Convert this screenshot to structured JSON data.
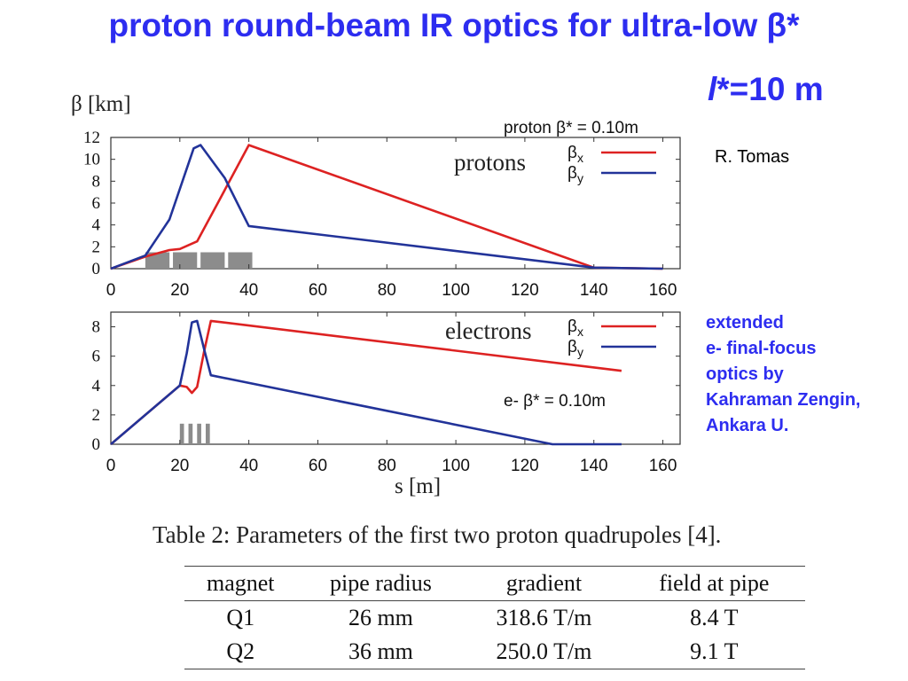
{
  "title": "proton round-beam IR optics for ultra-low β*",
  "lstar": {
    "l": "l",
    "rest": "*=10 m"
  },
  "author": "R. Tomas",
  "note": [
    "extended",
    "e-  final-focus",
    "optics by",
    "Kahraman Zengin,",
    "Ankara U."
  ],
  "chart_data": [
    {
      "type": "line",
      "ylabel": "β [km]",
      "xlabel": "",
      "panel_label": "protons",
      "annotation": "proton β* = 0.10m",
      "xlim": [
        0,
        165
      ],
      "ylim": [
        0,
        12
      ],
      "xticks": [
        0,
        20,
        40,
        60,
        80,
        100,
        120,
        140,
        160
      ],
      "yticks": [
        0,
        2,
        4,
        6,
        8,
        10,
        12
      ],
      "legend_position": "top-right",
      "series": [
        {
          "name": "βx",
          "color": "#dd2222",
          "x": [
            0,
            10,
            17,
            20,
            25,
            31,
            40,
            140,
            160
          ],
          "y": [
            0,
            1.1,
            1.7,
            1.8,
            2.5,
            6.0,
            11.3,
            0.1,
            0.0
          ]
        },
        {
          "name": "βy",
          "color": "#223399",
          "x": [
            0,
            10,
            17,
            24,
            26,
            33,
            40,
            140,
            160
          ],
          "y": [
            0,
            1.2,
            4.5,
            11.0,
            11.3,
            8.3,
            3.9,
            0.1,
            0.0
          ]
        }
      ],
      "magnets": [
        [
          10,
          17
        ],
        [
          18,
          25
        ],
        [
          26,
          33
        ],
        [
          34,
          41
        ]
      ],
      "magnet_height": 1.5
    },
    {
      "type": "line",
      "ylabel": "",
      "xlabel": "s [m]",
      "panel_label": "electrons",
      "annotation": "e- β* = 0.10m",
      "xlim": [
        0,
        165
      ],
      "ylim": [
        0,
        9
      ],
      "xticks": [
        0,
        20,
        40,
        60,
        80,
        100,
        120,
        140,
        160
      ],
      "yticks": [
        0,
        2,
        4,
        6,
        8
      ],
      "legend_position": "top-right",
      "series": [
        {
          "name": "βx",
          "color": "#dd2222",
          "x": [
            0,
            20,
            22,
            23.5,
            25,
            27,
            29,
            148
          ],
          "y": [
            0,
            4.0,
            3.9,
            3.5,
            3.9,
            6.3,
            8.4,
            5.0
          ]
        },
        {
          "name": "βy",
          "color": "#223399",
          "x": [
            0,
            20,
            22,
            23.5,
            25,
            27,
            29,
            128,
            148
          ],
          "y": [
            0,
            4.0,
            6.2,
            8.3,
            8.4,
            6.5,
            4.7,
            0.0,
            0.0
          ]
        }
      ],
      "magnets": [
        [
          20,
          21.2
        ],
        [
          22.5,
          23.7
        ],
        [
          25,
          26.2
        ],
        [
          27.5,
          28.7
        ]
      ],
      "magnet_height": 1.4
    }
  ],
  "table": {
    "caption": "Table 2: Parameters of the first two proton quadrupoles [4].",
    "headers": [
      "magnet",
      "pipe radius",
      "gradient",
      "field at pipe"
    ],
    "rows": [
      [
        "Q1",
        "26 mm",
        "318.6 T/m",
        "8.4 T"
      ],
      [
        "Q2",
        "36 mm",
        "250.0 T/m",
        "9.1 T"
      ]
    ]
  }
}
